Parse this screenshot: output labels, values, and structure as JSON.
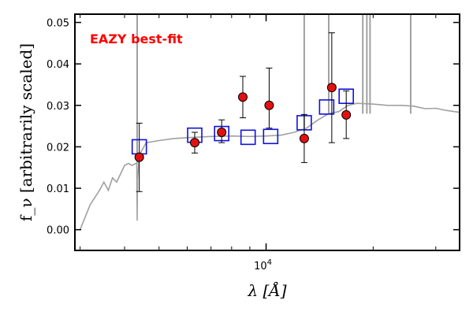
{
  "chart_data": {
    "type": "scatter",
    "title": "",
    "annotation": "EAZY best-fit",
    "xlabel": "λ [Å]",
    "ylabel": "f_ν [arbitrarily scaled]",
    "xscale": "log",
    "xlim": [
      2900,
      35000
    ],
    "ylim": [
      -0.005,
      0.052
    ],
    "yticks": [
      0.0,
      0.01,
      0.02,
      0.03,
      0.04,
      0.05
    ],
    "ytick_labels": [
      "0.00",
      "0.01",
      "0.02",
      "0.03",
      "0.04",
      "0.05"
    ],
    "xtick_label": "10^4",
    "colors": {
      "observed": "#e31010",
      "model_flux": "#1010dd",
      "template": "#a0a0a0",
      "annotation": "#ff0000"
    },
    "series": [
      {
        "kind": "observed photometry with error bars",
        "x": [
          4400,
          6300,
          7500,
          8600,
          10200,
          12800,
          15300,
          16800
        ],
        "y": [
          0.0175,
          0.021,
          0.0235,
          0.032,
          0.03,
          0.022,
          0.0343,
          0.0277
        ],
        "yerr_low": [
          0.0083,
          0.0025,
          0.0025,
          0.005,
          0.0055,
          0.0058,
          0.0133,
          0.0057
        ],
        "yerr_high": [
          0.0082,
          0.0025,
          0.003,
          0.005,
          0.009,
          0.0058,
          0.0132,
          0.0058
        ]
      },
      {
        "kind": "model photometry",
        "x": [
          4400,
          6300,
          7500,
          8900,
          10300,
          12800,
          14800,
          16800
        ],
        "y": [
          0.02,
          0.0228,
          0.0232,
          0.0223,
          0.0225,
          0.0258,
          0.0296,
          0.0322
        ]
      },
      {
        "kind": "template spectrum",
        "x": [
          3000,
          3200,
          3400,
          3500,
          3600,
          3700,
          3800,
          4000,
          4100,
          4200,
          4300,
          4330,
          4340,
          4350,
          4400,
          4600,
          5000,
          5500,
          6000,
          7000,
          8000,
          9000,
          10000,
          11000,
          12000,
          13000,
          14000,
          15000,
          16000,
          17000,
          18000,
          20000,
          22000,
          24000,
          26000,
          28000,
          30000,
          32000,
          35000
        ],
        "y": [
          0.0,
          0.006,
          0.0095,
          0.0115,
          0.0095,
          0.0125,
          0.0115,
          0.0155,
          0.016,
          0.0155,
          0.016,
          0.016,
          0.0022,
          0.0122,
          0.018,
          0.021,
          0.0215,
          0.022,
          0.0222,
          0.0225,
          0.0226,
          0.0225,
          0.0226,
          0.0228,
          0.0235,
          0.0245,
          0.0265,
          0.028,
          0.0285,
          0.03,
          0.0305,
          0.0303,
          0.03,
          0.03,
          0.0298,
          0.0292,
          0.0293,
          0.0288,
          0.0283
        ]
      },
      {
        "kind": "template emission spikes",
        "x": [
          4340,
          12800,
          15000,
          18700,
          19200,
          19600,
          25500
        ],
        "y": [
          0.052,
          0.052,
          0.052,
          0.052,
          0.052,
          0.052,
          0.052
        ]
      }
    ]
  }
}
